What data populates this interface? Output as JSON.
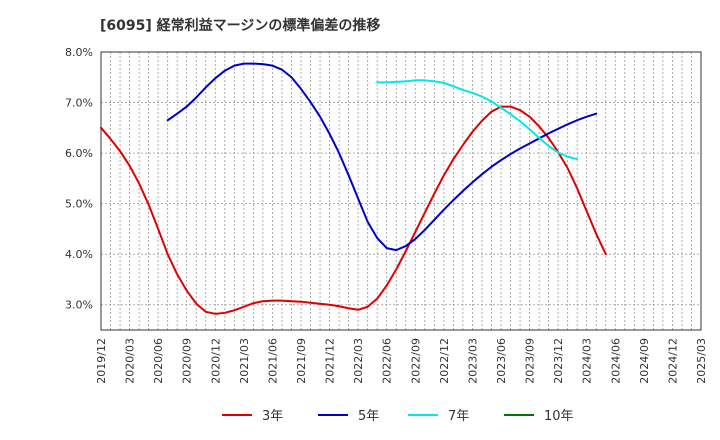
{
  "chart_data": {
    "type": "line",
    "title": "[6095]  経常利益マージンの標準偏差の推移",
    "xlabel": "",
    "ylabel": "",
    "ylim": [
      2.5,
      8.0
    ],
    "y_ticks": [
      "3.0%",
      "4.0%",
      "5.0%",
      "6.0%",
      "7.0%",
      "8.0%"
    ],
    "y_tick_values": [
      3.0,
      4.0,
      5.0,
      6.0,
      7.0,
      8.0
    ],
    "x_ticks": [
      "2019/12",
      "2020/03",
      "2020/06",
      "2020/09",
      "2020/12",
      "2021/03",
      "2021/06",
      "2021/09",
      "2021/12",
      "2022/03",
      "2022/06",
      "2022/09",
      "2022/12",
      "2023/03",
      "2023/06",
      "2023/09",
      "2023/12",
      "2024/03",
      "2024/06",
      "2024/09",
      "2024/12",
      "2025/03"
    ],
    "grid": true,
    "legend_position": "bottom",
    "series": [
      {
        "name": "3年",
        "color": "#e00000",
        "start_index": 0,
        "values": [
          6.5,
          6.28,
          6.04,
          5.75,
          5.4,
          4.98,
          4.5,
          4.0,
          3.6,
          3.28,
          3.02,
          2.86,
          2.82,
          2.84,
          2.89,
          2.96,
          3.03,
          3.07,
          3.08,
          3.08,
          3.07,
          3.06,
          3.04,
          3.02,
          3.0,
          2.97,
          2.93,
          2.9,
          2.96,
          3.12,
          3.38,
          3.7,
          4.06,
          4.44,
          4.82,
          5.2,
          5.56,
          5.88,
          6.16,
          6.42,
          6.64,
          6.82,
          6.92,
          6.92,
          6.85,
          6.72,
          6.53,
          6.3,
          6.02,
          5.7,
          5.3,
          4.85,
          4.4,
          4.0
        ]
      },
      {
        "name": "5年",
        "color": "#0000cc",
        "start_index": 7,
        "values": [
          6.65,
          6.78,
          6.92,
          7.1,
          7.3,
          7.48,
          7.63,
          7.73,
          7.77,
          7.77,
          7.76,
          7.73,
          7.65,
          7.5,
          7.27,
          7.01,
          6.72,
          6.38,
          6.0,
          5.56,
          5.1,
          4.64,
          4.32,
          4.12,
          4.08,
          4.16,
          4.3,
          4.48,
          4.68,
          4.88,
          5.07,
          5.25,
          5.42,
          5.58,
          5.73,
          5.86,
          5.98,
          6.09,
          6.19,
          6.29,
          6.39,
          6.48,
          6.57,
          6.65,
          6.72,
          6.78
        ]
      },
      {
        "name": "7年",
        "color": "#00e8e8",
        "start_index": 29,
        "values": [
          7.4,
          7.4,
          7.41,
          7.42,
          7.44,
          7.44,
          7.42,
          7.39,
          7.32,
          7.25,
          7.19,
          7.12,
          7.02,
          6.9,
          6.77,
          6.63,
          6.47,
          6.3,
          6.14,
          6.01,
          5.93,
          5.88
        ]
      },
      {
        "name": "10年",
        "color": "#007700",
        "start_index": 0,
        "values": []
      }
    ]
  }
}
